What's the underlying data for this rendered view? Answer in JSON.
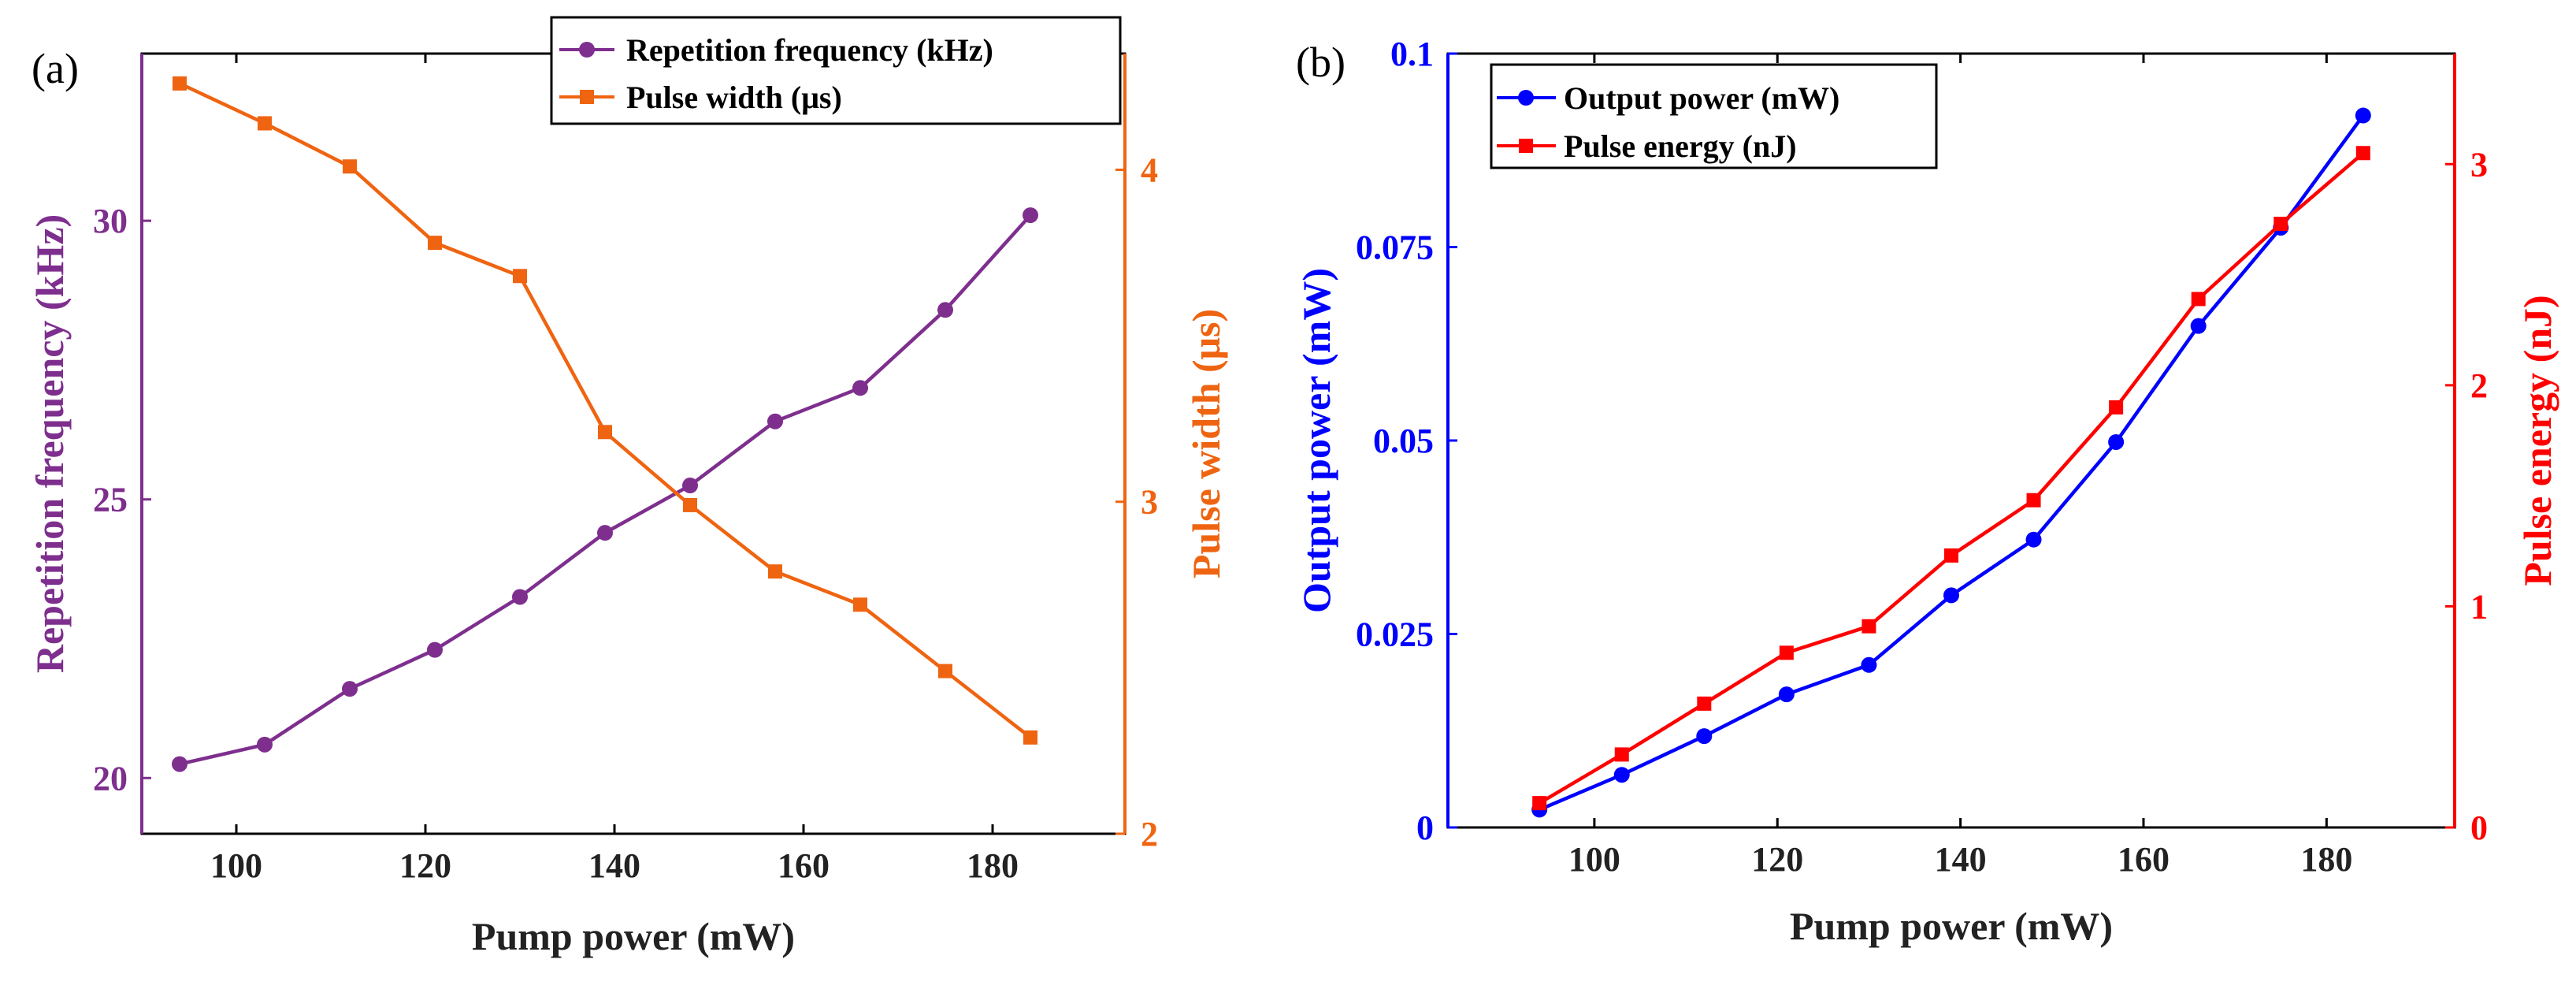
{
  "chart_data": [
    {
      "type": "line",
      "panel_label": "(a)",
      "x": [
        94,
        103,
        112,
        121,
        130,
        139,
        148,
        157,
        166,
        175,
        184
      ],
      "xlabel": "Pump power (mW)",
      "xlim": [
        90,
        194
      ],
      "xticks": [
        100,
        120,
        140,
        160,
        180
      ],
      "ylabel_left": "Repetition frequency (kHz)",
      "ylim_left": [
        19,
        33
      ],
      "yticks_left": [
        20,
        25,
        30
      ],
      "ylabel_right": "Pulse width (μs)",
      "ylim_right": [
        2,
        4.35
      ],
      "yticks_right": [
        2,
        3,
        4
      ],
      "legend_position": "top-right",
      "series": [
        {
          "name": "Repetition frequency (kHz)",
          "axis": "left",
          "marker": "circle",
          "color": "#7e2f8e",
          "values": [
            20.25,
            20.6,
            21.6,
            22.3,
            23.25,
            24.4,
            25.25,
            26.4,
            27.0,
            28.4,
            30.1
          ]
        },
        {
          "name": "Pulse width (μs)",
          "axis": "right",
          "marker": "square",
          "color": "#ef6411",
          "values": [
            4.26,
            4.14,
            4.01,
            3.78,
            3.68,
            3.21,
            2.99,
            2.79,
            2.69,
            2.49,
            2.29
          ]
        }
      ]
    },
    {
      "type": "line",
      "panel_label": "(b)",
      "x": [
        94,
        103,
        112,
        121,
        130,
        139,
        148,
        157,
        166,
        175,
        184
      ],
      "xlabel": "Pump power (mW)",
      "xlim": [
        84,
        194
      ],
      "xticks": [
        100,
        120,
        140,
        160,
        180
      ],
      "ylabel_left": "Output power (mW)",
      "ylim_left": [
        0,
        0.1
      ],
      "yticks_left": [
        "0",
        "0.025",
        "0.05",
        "0.075",
        "0.1"
      ],
      "ylabel_right": "Pulse energy (nJ)",
      "ylim_right": [
        0,
        3.5
      ],
      "yticks_right": [
        0,
        1,
        2,
        3
      ],
      "legend_position": "top-left",
      "series": [
        {
          "name": "Output power (mW)",
          "axis": "left",
          "marker": "circle",
          "color": "#0000ff",
          "values": [
            0.0023,
            0.0068,
            0.0118,
            0.0172,
            0.021,
            0.03,
            0.0372,
            0.0498,
            0.0648,
            0.0775,
            0.092
          ]
        },
        {
          "name": "Pulse energy (nJ)",
          "axis": "right",
          "marker": "square",
          "color": "#ff0000",
          "values": [
            0.11,
            0.33,
            0.56,
            0.79,
            0.91,
            1.23,
            1.48,
            1.9,
            2.39,
            2.73,
            3.05
          ]
        }
      ]
    }
  ]
}
